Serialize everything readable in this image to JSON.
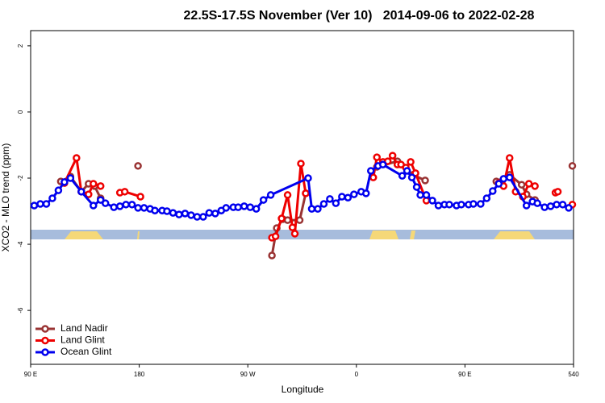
{
  "chart_data": {
    "type": "line",
    "title": "22.5S-17.5S November (Ver 10)   2014-09-06 to 2022-02-28",
    "x_label": "Longitude",
    "y_label": "XCO2 - MLO trend (ppm)",
    "xlim": [
      90,
      540
    ],
    "ylim": [
      -7.63,
      2.46
    ],
    "xticks": [
      {
        "value": 90,
        "label": "90 E"
      },
      180,
      {
        "value": 270,
        "label": "90 W"
      },
      {
        "value": 360,
        "label": "0"
      },
      {
        "value": 450,
        "label": "90 E"
      },
      540
    ],
    "yticks": [
      -6,
      -4,
      -2,
      0,
      2
    ],
    "legend": "bottom-left",
    "series": [
      {
        "name": "Land Nadir",
        "color": "#993333",
        "x": [
          115,
          123,
          132,
          138,
          143,
          148,
          null,
          179,
          null,
          290,
          294,
          299,
          303,
          313,
          318,
          null,
          377,
          394,
          407,
          417,
          null,
          476,
          487,
          497,
          501,
          508,
          null,
          539
        ],
        "values": [
          -2.1,
          -1.95,
          -2.41,
          -2.17,
          -2.24,
          -2.61,
          null,
          -1.63,
          null,
          -4.34,
          -3.51,
          -3.24,
          -3.27,
          -3.27,
          -2.46,
          null,
          -1.66,
          -1.49,
          -1.9,
          -2.07,
          null,
          -2.1,
          -1.9,
          -2.2,
          -2.49,
          -2.66,
          null,
          -1.63
        ]
      },
      {
        "name": "Land Glint",
        "color": "#ee0000",
        "x": [
          118,
          128,
          132,
          138,
          142,
          148,
          null,
          164,
          168,
          181,
          null,
          290,
          293,
          298,
          303,
          307,
          309,
          314,
          318,
          null,
          374,
          377,
          382,
          386,
          390,
          394,
          397,
          401,
          405,
          409,
          418,
          null,
          478,
          482,
          487,
          492,
          498,
          503,
          508,
          null,
          525,
          527,
          null,
          539
        ],
        "values": [
          -2.15,
          -1.39,
          -2.41,
          -2.49,
          -2.17,
          -2.24,
          null,
          -2.44,
          -2.41,
          -2.56,
          null,
          -3.8,
          -3.76,
          -3.22,
          -2.51,
          -3.49,
          -3.68,
          -1.56,
          -2.46,
          null,
          -1.98,
          -1.37,
          -1.51,
          -1.49,
          -1.32,
          -1.59,
          -1.59,
          -1.68,
          -1.51,
          -1.85,
          -2.68,
          null,
          -2.15,
          -2.24,
          -1.39,
          -2.41,
          -2.56,
          -2.17,
          -2.24,
          null,
          -2.44,
          -2.41,
          null,
          -2.8
        ]
      },
      {
        "name": "Ocean Glint",
        "color": "#0000ee",
        "x": [
          93,
          98,
          103,
          108,
          113,
          118,
          123,
          132,
          142,
          148,
          152,
          159,
          164,
          169,
          174,
          179,
          184,
          189,
          193,
          199,
          203,
          208,
          213,
          218,
          223,
          228,
          233,
          238,
          243,
          248,
          252,
          258,
          262,
          267,
          272,
          277,
          283,
          289,
          320,
          323,
          328,
          333,
          338,
          343,
          348,
          353,
          358,
          364,
          368,
          372,
          378,
          382,
          398,
          402,
          406,
          410,
          413,
          418,
          423,
          428,
          433,
          437,
          443,
          447,
          453,
          457,
          463,
          468,
          473,
          478,
          482,
          487,
          501,
          506,
          510,
          516,
          521,
          526,
          531,
          536
        ],
        "values": [
          -2.83,
          -2.78,
          -2.78,
          -2.61,
          -2.37,
          -2.12,
          -2.0,
          -2.41,
          -2.83,
          -2.66,
          -2.76,
          -2.88,
          -2.85,
          -2.8,
          -2.8,
          -2.9,
          -2.9,
          -2.93,
          -2.98,
          -2.98,
          -3.0,
          -3.05,
          -3.1,
          -3.07,
          -3.12,
          -3.17,
          -3.17,
          -3.05,
          -3.07,
          -2.98,
          -2.9,
          -2.88,
          -2.88,
          -2.85,
          -2.88,
          -2.93,
          -2.66,
          -2.51,
          -2.0,
          -2.93,
          -2.93,
          -2.78,
          -2.63,
          -2.76,
          -2.56,
          -2.59,
          -2.49,
          -2.41,
          -2.46,
          -1.78,
          -1.63,
          -1.59,
          -1.93,
          -1.78,
          -1.98,
          -2.27,
          -2.51,
          -2.51,
          -2.68,
          -2.83,
          -2.8,
          -2.8,
          -2.83,
          -2.8,
          -2.8,
          -2.78,
          -2.78,
          -2.61,
          -2.39,
          -2.17,
          -2.02,
          -1.98,
          -2.83,
          -2.71,
          -2.76,
          -2.88,
          -2.85,
          -2.8,
          -2.8,
          -2.9
        ]
      }
    ]
  }
}
